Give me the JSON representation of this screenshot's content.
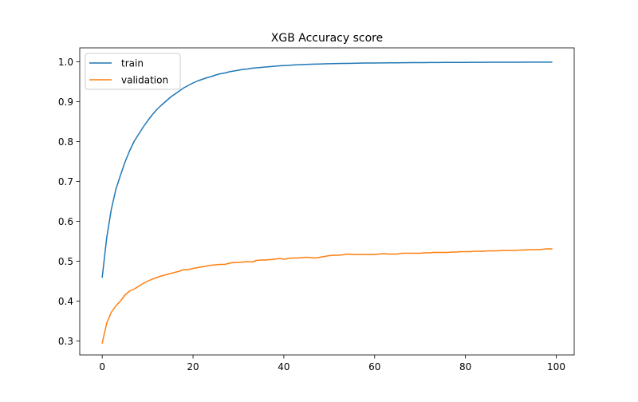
{
  "chart_data": {
    "type": "line",
    "title": "XGB Accuracy score",
    "xlabel": "",
    "ylabel": "",
    "xlim": [
      -4.95,
      103.95
    ],
    "ylim": [
      0.265,
      1.035
    ],
    "xticks": [
      0,
      20,
      40,
      60,
      80,
      100
    ],
    "xtick_labels": [
      "0",
      "20",
      "40",
      "60",
      "80",
      "100"
    ],
    "yticks": [
      0.3,
      0.4,
      0.5,
      0.6,
      0.7,
      0.8,
      0.9,
      1.0
    ],
    "ytick_labels": [
      "0.3",
      "0.4",
      "0.5",
      "0.6",
      "0.7",
      "0.8",
      "0.9",
      "1.0"
    ],
    "grid": false,
    "legend_position": "upper-left",
    "series": [
      {
        "name": "train",
        "color": "#1f77b4",
        "x": [
          0,
          1,
          2,
          3,
          4,
          5,
          6,
          7,
          8,
          9,
          10,
          11,
          12,
          13,
          14,
          15,
          16,
          17,
          18,
          19,
          20,
          21,
          22,
          23,
          24,
          25,
          26,
          27,
          28,
          29,
          30,
          31,
          32,
          33,
          34,
          35,
          36,
          37,
          38,
          39,
          40,
          41,
          42,
          43,
          44,
          45,
          46,
          47,
          48,
          49,
          50,
          51,
          52,
          53,
          54,
          55,
          56,
          57,
          58,
          59,
          60,
          61,
          62,
          63,
          64,
          65,
          66,
          67,
          68,
          69,
          70,
          71,
          72,
          73,
          74,
          75,
          76,
          77,
          78,
          79,
          80,
          81,
          82,
          83,
          84,
          85,
          86,
          87,
          88,
          89,
          90,
          91,
          92,
          93,
          94,
          95,
          96,
          97,
          98,
          99
        ],
        "values": [
          0.46,
          0.56,
          0.63,
          0.68,
          0.715,
          0.748,
          0.776,
          0.8,
          0.818,
          0.836,
          0.852,
          0.867,
          0.88,
          0.891,
          0.901,
          0.911,
          0.919,
          0.927,
          0.935,
          0.941,
          0.947,
          0.952,
          0.956,
          0.96,
          0.963,
          0.967,
          0.97,
          0.972,
          0.975,
          0.977,
          0.979,
          0.981,
          0.982,
          0.984,
          0.985,
          0.986,
          0.987,
          0.988,
          0.989,
          0.99,
          0.9905,
          0.991,
          0.992,
          0.9925,
          0.993,
          0.9935,
          0.994,
          0.9943,
          0.9946,
          0.9949,
          0.9952,
          0.9955,
          0.9957,
          0.9959,
          0.9961,
          0.9963,
          0.9965,
          0.9967,
          0.9969,
          0.997,
          0.9971,
          0.9972,
          0.9973,
          0.9974,
          0.9975,
          0.9976,
          0.9977,
          0.9978,
          0.9979,
          0.998,
          0.998,
          0.9981,
          0.9982,
          0.9982,
          0.9983,
          0.9984,
          0.9984,
          0.9985,
          0.9985,
          0.9986,
          0.9986,
          0.9987,
          0.9987,
          0.9988,
          0.9988,
          0.9989,
          0.9989,
          0.999,
          0.999,
          0.999,
          0.9991,
          0.9991,
          0.9991,
          0.9992,
          0.9992,
          0.9992,
          0.9993,
          0.9993,
          0.9993,
          0.9993
        ]
      },
      {
        "name": "validation",
        "color": "#ff7f0e",
        "x": [
          0,
          1,
          2,
          3,
          4,
          5,
          6,
          7,
          8,
          9,
          10,
          11,
          12,
          13,
          14,
          15,
          16,
          17,
          18,
          19,
          20,
          21,
          22,
          23,
          24,
          25,
          26,
          27,
          28,
          29,
          30,
          31,
          32,
          33,
          34,
          35,
          36,
          37,
          38,
          39,
          40,
          41,
          42,
          43,
          44,
          45,
          46,
          47,
          48,
          49,
          50,
          51,
          52,
          53,
          54,
          55,
          56,
          57,
          58,
          59,
          60,
          61,
          62,
          63,
          64,
          65,
          66,
          67,
          68,
          69,
          70,
          71,
          72,
          73,
          74,
          75,
          76,
          77,
          78,
          79,
          80,
          81,
          82,
          83,
          84,
          85,
          86,
          87,
          88,
          89,
          90,
          91,
          92,
          93,
          94,
          95,
          96,
          97,
          98,
          99
        ],
        "values": [
          0.295,
          0.345,
          0.372,
          0.388,
          0.4,
          0.415,
          0.425,
          0.43,
          0.437,
          0.444,
          0.45,
          0.455,
          0.459,
          0.463,
          0.466,
          0.469,
          0.472,
          0.475,
          0.479,
          0.479,
          0.482,
          0.484,
          0.486,
          0.488,
          0.49,
          0.491,
          0.492,
          0.492,
          0.495,
          0.497,
          0.497,
          0.498,
          0.499,
          0.498,
          0.502,
          0.503,
          0.503,
          0.504,
          0.505,
          0.507,
          0.505,
          0.507,
          0.508,
          0.508,
          0.509,
          0.51,
          0.509,
          0.508,
          0.51,
          0.512,
          0.514,
          0.515,
          0.515,
          0.516,
          0.518,
          0.517,
          0.517,
          0.517,
          0.517,
          0.517,
          0.517,
          0.518,
          0.519,
          0.518,
          0.518,
          0.518,
          0.52,
          0.52,
          0.52,
          0.52,
          0.52,
          0.521,
          0.521,
          0.522,
          0.522,
          0.522,
          0.522,
          0.523,
          0.523,
          0.524,
          0.524,
          0.524,
          0.525,
          0.525,
          0.525,
          0.526,
          0.526,
          0.526,
          0.527,
          0.527,
          0.527,
          0.527,
          0.528,
          0.528,
          0.529,
          0.529,
          0.529,
          0.53,
          0.531,
          0.531
        ]
      }
    ]
  }
}
